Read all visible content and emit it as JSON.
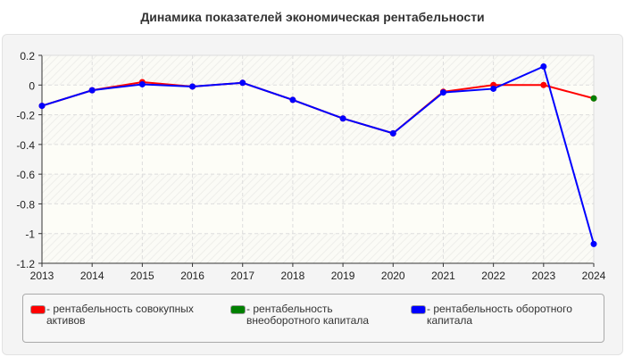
{
  "chart_data": {
    "type": "line",
    "title": "Динамика показателей экономическая рентабельности",
    "xlabel": "",
    "ylabel": "",
    "x": [
      2013,
      2014,
      2015,
      2016,
      2017,
      2018,
      2019,
      2020,
      2021,
      2022,
      2023,
      2024
    ],
    "ylim": [
      -1.2,
      0.2
    ],
    "yticks": [
      "0.2",
      "0",
      "-0.2",
      "-0.4",
      "-0.6",
      "-0.8",
      "-1",
      "-1.2"
    ],
    "xticks": [
      "2013",
      "2014",
      "2015",
      "2016",
      "2017",
      "2018",
      "2019",
      "2020",
      "2021",
      "2022",
      "2023",
      "2024"
    ],
    "grid": true,
    "legend_position": "bottom",
    "series": [
      {
        "name": "рентабельность совокупных активов",
        "color": "#ff0000",
        "values": [
          -0.14,
          -0.035,
          0.02,
          -0.01,
          0.015,
          -0.1,
          -0.225,
          -0.325,
          -0.045,
          0.0,
          0.0,
          -0.09
        ]
      },
      {
        "name": "рентабельность внеоборотного капитала",
        "color": "#008000",
        "values": [
          null,
          null,
          null,
          null,
          null,
          null,
          null,
          null,
          null,
          null,
          null,
          -0.09
        ]
      },
      {
        "name": "рентабельность оборотного капитала",
        "color": "#0000ff",
        "values": [
          -0.14,
          -0.035,
          0.005,
          -0.01,
          0.015,
          -0.1,
          -0.225,
          -0.325,
          -0.05,
          -0.025,
          0.125,
          -1.07
        ]
      }
    ]
  },
  "legend": {
    "prefix": "-",
    "items": [
      {
        "label": "рентабельность совокупных активов"
      },
      {
        "label": "рентабельность внеоборотного капитала"
      },
      {
        "label": "рентабельность оборотного капитала"
      }
    ]
  }
}
